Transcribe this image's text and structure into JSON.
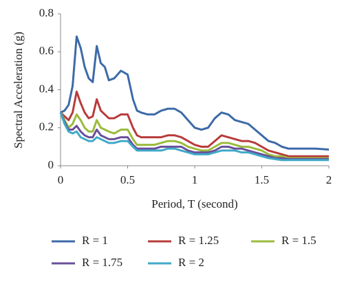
{
  "chart_data": {
    "type": "line",
    "x_label": "Period, T (second)",
    "y_label": "Spectral Acceleration (g)",
    "x": [
      0,
      0.03,
      0.06,
      0.09,
      0.12,
      0.15,
      0.18,
      0.21,
      0.24,
      0.27,
      0.3,
      0.33,
      0.36,
      0.4,
      0.45,
      0.5,
      0.54,
      0.57,
      0.6,
      0.65,
      0.7,
      0.75,
      0.8,
      0.85,
      0.9,
      0.95,
      1.0,
      1.05,
      1.1,
      1.15,
      1.2,
      1.25,
      1.3,
      1.35,
      1.4,
      1.45,
      1.5,
      1.55,
      1.6,
      1.65,
      1.7,
      1.8,
      1.9,
      2.0
    ],
    "series": [
      {
        "name": "R = 1",
        "color": "#3c6aa8",
        "values": [
          0.28,
          0.29,
          0.32,
          0.42,
          0.68,
          0.62,
          0.52,
          0.46,
          0.44,
          0.63,
          0.54,
          0.52,
          0.45,
          0.46,
          0.5,
          0.48,
          0.35,
          0.29,
          0.28,
          0.27,
          0.27,
          0.29,
          0.3,
          0.3,
          0.28,
          0.24,
          0.2,
          0.19,
          0.2,
          0.25,
          0.28,
          0.27,
          0.24,
          0.23,
          0.22,
          0.19,
          0.16,
          0.13,
          0.12,
          0.1,
          0.09,
          0.09,
          0.09,
          0.085
        ]
      },
      {
        "name": "R = 1.25",
        "color": "#b83b3b",
        "values": [
          0.28,
          0.26,
          0.24,
          0.28,
          0.39,
          0.33,
          0.28,
          0.25,
          0.26,
          0.35,
          0.29,
          0.27,
          0.25,
          0.25,
          0.27,
          0.27,
          0.2,
          0.16,
          0.15,
          0.15,
          0.15,
          0.15,
          0.16,
          0.16,
          0.15,
          0.13,
          0.11,
          0.1,
          0.1,
          0.13,
          0.16,
          0.15,
          0.14,
          0.13,
          0.13,
          0.12,
          0.1,
          0.08,
          0.07,
          0.06,
          0.05,
          0.05,
          0.05,
          0.05
        ]
      },
      {
        "name": "R = 1.5",
        "color": "#9bbb3c",
        "values": [
          0.28,
          0.24,
          0.2,
          0.22,
          0.27,
          0.24,
          0.2,
          0.18,
          0.18,
          0.24,
          0.2,
          0.19,
          0.18,
          0.17,
          0.19,
          0.19,
          0.14,
          0.11,
          0.11,
          0.11,
          0.11,
          0.12,
          0.13,
          0.13,
          0.12,
          0.1,
          0.09,
          0.08,
          0.08,
          0.1,
          0.12,
          0.12,
          0.11,
          0.1,
          0.1,
          0.09,
          0.08,
          0.06,
          0.05,
          0.05,
          0.04,
          0.04,
          0.04,
          0.04
        ]
      },
      {
        "name": "R = 1.75",
        "color": "#6a4f9a",
        "values": [
          0.28,
          0.23,
          0.19,
          0.19,
          0.21,
          0.18,
          0.16,
          0.15,
          0.15,
          0.19,
          0.16,
          0.15,
          0.14,
          0.14,
          0.15,
          0.15,
          0.11,
          0.09,
          0.09,
          0.09,
          0.09,
          0.1,
          0.1,
          0.1,
          0.1,
          0.08,
          0.07,
          0.07,
          0.07,
          0.08,
          0.1,
          0.1,
          0.09,
          0.09,
          0.08,
          0.07,
          0.06,
          0.05,
          0.04,
          0.04,
          0.035,
          0.035,
          0.035,
          0.035
        ]
      },
      {
        "name": "R = 2",
        "color": "#3fa9c8",
        "values": [
          0.28,
          0.22,
          0.18,
          0.17,
          0.18,
          0.15,
          0.14,
          0.13,
          0.13,
          0.15,
          0.14,
          0.13,
          0.12,
          0.12,
          0.13,
          0.13,
          0.1,
          0.08,
          0.08,
          0.08,
          0.08,
          0.08,
          0.09,
          0.09,
          0.08,
          0.07,
          0.06,
          0.06,
          0.06,
          0.07,
          0.08,
          0.08,
          0.08,
          0.07,
          0.07,
          0.06,
          0.05,
          0.04,
          0.035,
          0.03,
          0.03,
          0.03,
          0.03,
          0.03
        ]
      }
    ],
    "xlim": [
      0,
      2
    ],
    "xticks": [
      0,
      0.5,
      1,
      1.5,
      2
    ],
    "ylim": [
      0,
      0.8
    ],
    "yticks": [
      0,
      0.2,
      0.4,
      0.6,
      0.8
    ],
    "grid": false,
    "legend": "bottom"
  }
}
